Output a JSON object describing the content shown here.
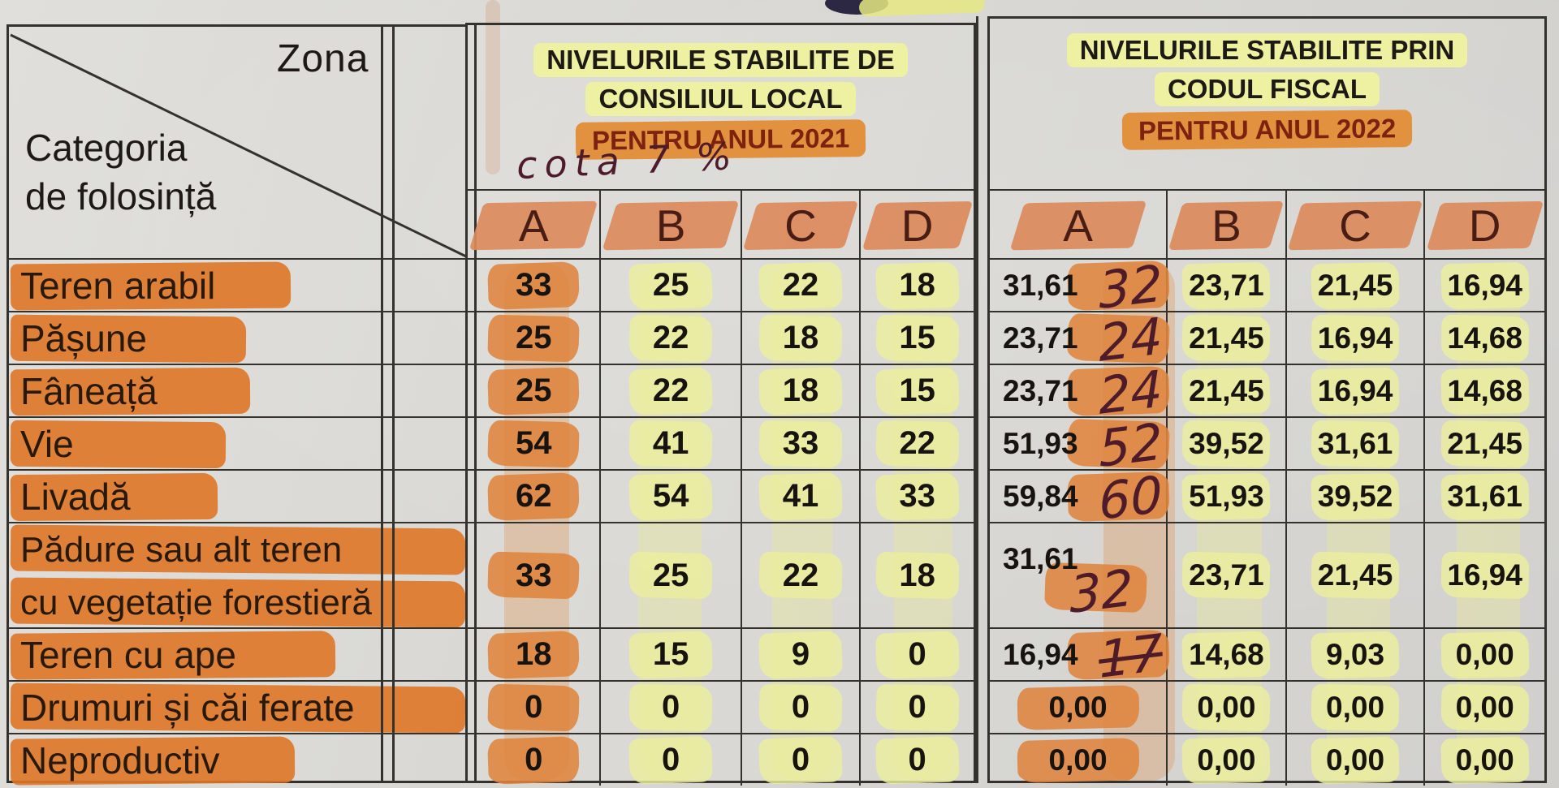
{
  "corner": {
    "zona_label": "Zona",
    "categoria_line1": "Categoria",
    "categoria_line2": "de  folosință"
  },
  "table_2021": {
    "title_line1": "NIVELURILE STABILITE DE",
    "title_line2": "CONSILIUL LOCAL",
    "title_line3": "PENTRU ANUL 2021",
    "handwritten_note": "cota  7 %",
    "zone_headers": [
      "A",
      "B",
      "C",
      "D"
    ]
  },
  "table_2022": {
    "title_line1": "NIVELURILE  STABILITE PRIN",
    "title_line2": "CODUL FISCAL",
    "title_line3": "PENTRU ANUL 2022",
    "zone_headers": [
      "A",
      "B",
      "C",
      "D"
    ]
  },
  "rows": [
    {
      "label_lines": [
        "Teren arabil"
      ],
      "v2021": [
        "33",
        "25",
        "22",
        "18"
      ],
      "v2022": [
        "31,61",
        "23,71",
        "21,45",
        "16,94"
      ],
      "hand2022A": "32"
    },
    {
      "label_lines": [
        "Pășune"
      ],
      "v2021": [
        "25",
        "22",
        "18",
        "15"
      ],
      "v2022": [
        "23,71",
        "21,45",
        "16,94",
        "14,68"
      ],
      "hand2022A": "24"
    },
    {
      "label_lines": [
        "Fâneață"
      ],
      "v2021": [
        "25",
        "22",
        "18",
        "15"
      ],
      "v2022": [
        "23,71",
        "21,45",
        "16,94",
        "14,68"
      ],
      "hand2022A": "24"
    },
    {
      "label_lines": [
        "Vie"
      ],
      "v2021": [
        "54",
        "41",
        "33",
        "22"
      ],
      "v2022": [
        "51,93",
        "39,52",
        "31,61",
        "21,45"
      ],
      "hand2022A": "52"
    },
    {
      "label_lines": [
        "Livadă"
      ],
      "v2021": [
        "62",
        "54",
        "41",
        "33"
      ],
      "v2022": [
        "59,84",
        "51,93",
        "39,52",
        "31,61"
      ],
      "hand2022A": "60"
    },
    {
      "label_lines": [
        "Pădure  sau  alt  teren",
        "cu vegetație forestieră"
      ],
      "v2021": [
        "33",
        "25",
        "22",
        "18"
      ],
      "v2022": [
        "31,61",
        "23,71",
        "21,45",
        "16,94"
      ],
      "hand2022A": "32"
    },
    {
      "label_lines": [
        "Teren cu ape"
      ],
      "v2021": [
        "18",
        "15",
        "9",
        "0"
      ],
      "v2022": [
        "16,94",
        "14,68",
        "9,03",
        "0,00"
      ],
      "hand2022A": "17"
    },
    {
      "label_lines": [
        "Drumuri și căi ferate"
      ],
      "v2021": [
        "0",
        "0",
        "0",
        "0"
      ],
      "v2022": [
        "0,00",
        "0,00",
        "0,00",
        "0,00"
      ],
      "hand2022A": ""
    },
    {
      "label_lines": [
        "Neproductiv"
      ],
      "v2021": [
        "0",
        "0",
        "0",
        "0"
      ],
      "v2022": [
        "0,00",
        "0,00",
        "0,00",
        "0,00"
      ],
      "hand2022A": ""
    }
  ],
  "colors": {
    "orange_highlight": "#df843e",
    "salmon_highlight": "#dc8a5c",
    "yellow_highlight": "#eceea0",
    "title_orange_band": "#e2923e",
    "accent_dark_red": "#7c2310",
    "handwriting_ink": "#4e1b2b",
    "printed_text": "#1d1a16",
    "paper": "#d9d8d4"
  }
}
